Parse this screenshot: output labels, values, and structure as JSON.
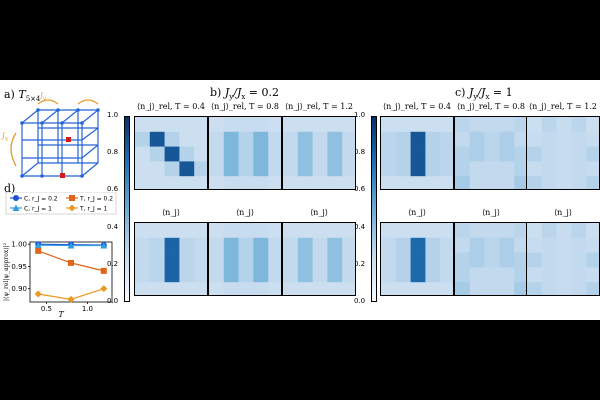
{
  "panels": {
    "a": {
      "label": "a)",
      "title": "T",
      "sub": "5×4",
      "jx": "J",
      "jxs": "x",
      "jy": "J",
      "jys": "y"
    },
    "b": {
      "label": "b)",
      "title": "J",
      "title_y": "y",
      "mid": "/J",
      "title_x": "x",
      "value": " = 0.2"
    },
    "c": {
      "label": "c)",
      "title": "J",
      "title_y": "y",
      "mid": "/J",
      "title_x": "x",
      "value": " = 1"
    },
    "d": {
      "label": "d)"
    }
  },
  "captions": {
    "top": [
      "⟨n_j⟩_rel, T = 0.4",
      "⟨n_j⟩_rel, T = 0.8",
      "⟨n_j⟩_rel, T = 1.2"
    ],
    "bottom": [
      "⟨n_j⟩",
      "⟨n_j⟩",
      "⟨n_j⟩"
    ]
  },
  "colorbar_ticks": [
    "1.0",
    "0.8",
    "0.6",
    "0.4",
    "0.2",
    "0.0"
  ],
  "heatmaps": {
    "b": [
      [
        0.22,
        0.22,
        0.22,
        0.22,
        0.22,
        0.3,
        0.85,
        0.3,
        0.22,
        0.22,
        0.22,
        0.3,
        0.85,
        0.3,
        0.22,
        0.22,
        0.22,
        0.3,
        0.85,
        0.3,
        0.22,
        0.22,
        0.22,
        0.22,
        0.22
      ],
      [
        0.22,
        0.24,
        0.24,
        0.24,
        0.22,
        0.26,
        0.45,
        0.3,
        0.45,
        0.26,
        0.26,
        0.45,
        0.3,
        0.45,
        0.26,
        0.26,
        0.45,
        0.3,
        0.45,
        0.26,
        0.22,
        0.24,
        0.24,
        0.24,
        0.22
      ],
      [
        0.22,
        0.22,
        0.22,
        0.22,
        0.22,
        0.26,
        0.4,
        0.26,
        0.4,
        0.26,
        0.26,
        0.4,
        0.26,
        0.4,
        0.26,
        0.26,
        0.4,
        0.26,
        0.4,
        0.26,
        0.22,
        0.22,
        0.22,
        0.22,
        0.22
      ],
      [
        0.22,
        0.22,
        0.22,
        0.22,
        0.22,
        0.26,
        0.28,
        0.8,
        0.28,
        0.26,
        0.26,
        0.28,
        0.8,
        0.28,
        0.26,
        0.26,
        0.28,
        0.8,
        0.28,
        0.26,
        0.22,
        0.22,
        0.22,
        0.22,
        0.22
      ],
      [
        0.22,
        0.24,
        0.24,
        0.24,
        0.22,
        0.26,
        0.45,
        0.3,
        0.45,
        0.26,
        0.26,
        0.45,
        0.3,
        0.45,
        0.26,
        0.26,
        0.45,
        0.3,
        0.45,
        0.26,
        0.22,
        0.24,
        0.24,
        0.24,
        0.22
      ],
      [
        0.22,
        0.22,
        0.22,
        0.22,
        0.22,
        0.26,
        0.4,
        0.26,
        0.4,
        0.26,
        0.26,
        0.4,
        0.26,
        0.4,
        0.26,
        0.26,
        0.4,
        0.26,
        0.4,
        0.26,
        0.22,
        0.22,
        0.22,
        0.22,
        0.22
      ]
    ],
    "c": [
      [
        0.22,
        0.22,
        0.22,
        0.22,
        0.22,
        0.28,
        0.3,
        0.85,
        0.3,
        0.28,
        0.28,
        0.3,
        0.85,
        0.3,
        0.28,
        0.28,
        0.3,
        0.85,
        0.3,
        0.28,
        0.22,
        0.22,
        0.22,
        0.22,
        0.22
      ],
      [
        0.28,
        0.26,
        0.26,
        0.26,
        0.28,
        0.26,
        0.32,
        0.28,
        0.32,
        0.26,
        0.3,
        0.32,
        0.28,
        0.32,
        0.3,
        0.3,
        0.26,
        0.26,
        0.26,
        0.3,
        0.34,
        0.26,
        0.26,
        0.26,
        0.34
      ],
      [
        0.22,
        0.28,
        0.24,
        0.28,
        0.22,
        0.24,
        0.26,
        0.24,
        0.26,
        0.24,
        0.3,
        0.26,
        0.24,
        0.26,
        0.3,
        0.24,
        0.26,
        0.24,
        0.26,
        0.24,
        0.3,
        0.26,
        0.24,
        0.26,
        0.3
      ],
      [
        0.22,
        0.22,
        0.22,
        0.22,
        0.22,
        0.26,
        0.3,
        0.78,
        0.3,
        0.26,
        0.26,
        0.3,
        0.78,
        0.3,
        0.26,
        0.26,
        0.3,
        0.78,
        0.3,
        0.26,
        0.22,
        0.22,
        0.22,
        0.22,
        0.22
      ],
      [
        0.28,
        0.26,
        0.26,
        0.26,
        0.28,
        0.26,
        0.32,
        0.28,
        0.32,
        0.26,
        0.3,
        0.32,
        0.28,
        0.32,
        0.3,
        0.3,
        0.26,
        0.26,
        0.26,
        0.3,
        0.34,
        0.26,
        0.26,
        0.26,
        0.34
      ],
      [
        0.22,
        0.28,
        0.24,
        0.28,
        0.22,
        0.24,
        0.26,
        0.24,
        0.26,
        0.24,
        0.3,
        0.26,
        0.24,
        0.26,
        0.3,
        0.24,
        0.26,
        0.24,
        0.26,
        0.24,
        0.3,
        0.26,
        0.24,
        0.26,
        0.3
      ]
    ]
  },
  "chart_data": {
    "type": "line",
    "title": "",
    "xlabel": "T",
    "ylabel": "|⟨ψ_rel|ψ_approx⟩|²",
    "x": [
      0.4,
      0.8,
      1.2
    ],
    "xticks": [
      "0.5",
      "1.0"
    ],
    "yticks": [
      "1.00",
      "0.95",
      "0.90"
    ],
    "ylim": [
      0.87,
      1.005
    ],
    "series": [
      {
        "name": "C, r_J = 0.2",
        "values": [
          1.0,
          0.999,
          0.998
        ],
        "color": "#1f4fd6",
        "marker": "circle"
      },
      {
        "name": "C, r_J = 1",
        "values": [
          0.998,
          0.997,
          0.997
        ],
        "color": "#2f9fe0",
        "marker": "triangle"
      },
      {
        "name": "T, r_J = 0.2",
        "values": [
          0.985,
          0.958,
          0.94
        ],
        "color": "#e0641a",
        "marker": "square"
      },
      {
        "name": "T, r_J = 1",
        "values": [
          0.888,
          0.876,
          0.9
        ],
        "color": "#e99a22",
        "marker": "diamond"
      }
    ]
  }
}
